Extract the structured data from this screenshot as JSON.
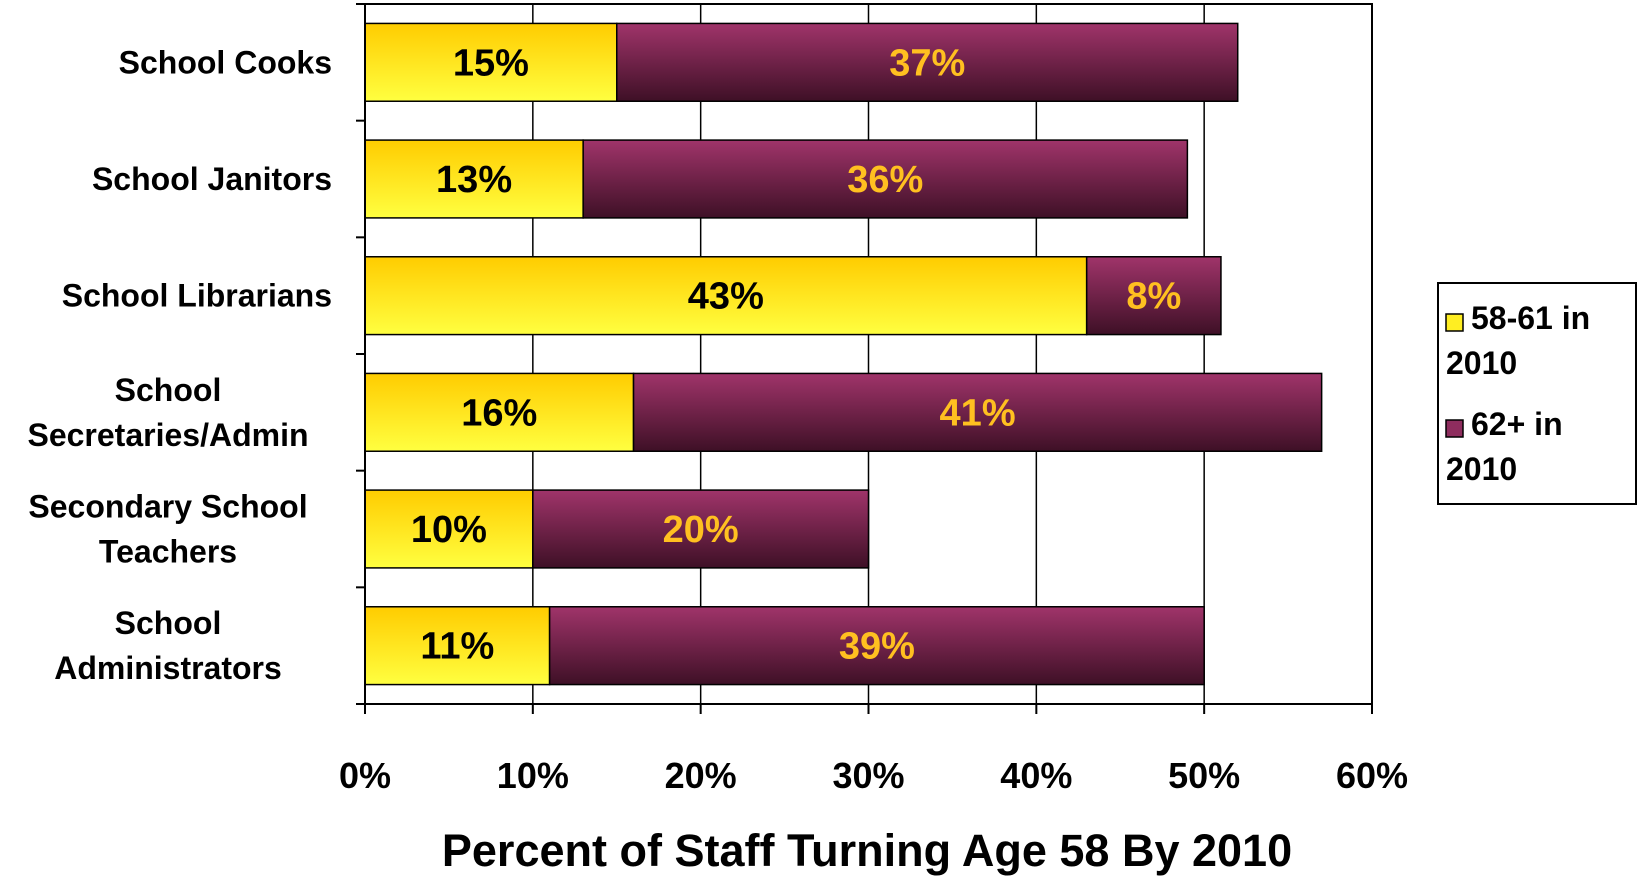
{
  "chart_data": {
    "type": "bar",
    "orientation": "horizontal",
    "stacked": true,
    "categories": [
      [
        "School Cooks"
      ],
      [
        "School Janitors"
      ],
      [
        "School Librarians"
      ],
      [
        "School",
        "Secretaries/Admin"
      ],
      [
        "Secondary School",
        "Teachers"
      ],
      [
        "School",
        "Administrators"
      ]
    ],
    "series": [
      {
        "name": [
          "58-61 in",
          "2010"
        ],
        "values": [
          15,
          13,
          43,
          16,
          10,
          11
        ],
        "labels": [
          "15%",
          "13%",
          "43%",
          "16%",
          "10%",
          "11%"
        ],
        "color": "#ffee22",
        "label_color": "#000000"
      },
      {
        "name": [
          "62+ in",
          "2010"
        ],
        "values": [
          37,
          36,
          8,
          41,
          20,
          39
        ],
        "labels": [
          "37%",
          "36%",
          "8%",
          "41%",
          "20%",
          "39%"
        ],
        "color": "#8e2d5e",
        "label_color": "#ffc020"
      }
    ],
    "xlabel": "Percent of Staff Turning Age 58 By 2010",
    "xlim": [
      0,
      60
    ],
    "xticks": [
      0,
      10,
      20,
      30,
      40,
      50,
      60
    ],
    "xtick_labels": [
      "0%",
      "10%",
      "20%",
      "30%",
      "40%",
      "50%",
      "60%"
    ],
    "grid": "vertical",
    "legend_position": "right"
  }
}
